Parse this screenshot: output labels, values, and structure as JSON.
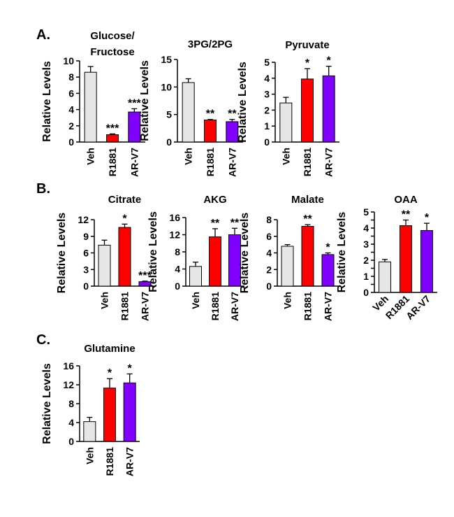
{
  "panels": [
    {
      "letter": "A.",
      "x": 0,
      "y": 0
    },
    {
      "letter": "B.",
      "x": 0,
      "y": 0
    },
    {
      "letter": "C.",
      "x": 0,
      "y": 0
    }
  ],
  "colors": {
    "Veh": "#e6e6e6",
    "R1881": "#ff0000",
    "AR-V7": "#7f00ff"
  },
  "chart_data": [
    {
      "panel": "A.",
      "type": "bar",
      "title": "Glucose/\nFructose",
      "ylabel": "Relative Levels",
      "categories": [
        "Veh",
        "R1881",
        "AR-V7"
      ],
      "values": [
        8.6,
        0.9,
        3.7
      ],
      "errors": [
        0.7,
        0.1,
        0.4
      ],
      "significance": [
        "",
        "***",
        "***"
      ],
      "ylim": [
        0,
        10
      ],
      "yticks": [
        0,
        2,
        4,
        6,
        8,
        10
      ]
    },
    {
      "panel": "A.",
      "type": "bar",
      "title": "3PG/2PG",
      "ylabel": "Relative Levels",
      "categories": [
        "Veh",
        "R1881",
        "AR-V7"
      ],
      "values": [
        10.8,
        4.0,
        3.7
      ],
      "errors": [
        0.7,
        0.1,
        0.4
      ],
      "significance": [
        "",
        "**",
        "**"
      ],
      "ylim": [
        0,
        15
      ],
      "yticks": [
        0,
        5,
        10,
        15
      ]
    },
    {
      "panel": "A.",
      "type": "bar",
      "title": "Pyruvate",
      "ylabel": "Relative Levels",
      "categories": [
        "Veh",
        "R1881",
        "AR-V7"
      ],
      "values": [
        2.45,
        3.95,
        4.15
      ],
      "errors": [
        0.35,
        0.65,
        0.6
      ],
      "significance": [
        "",
        "*",
        "*"
      ],
      "ylim": [
        0,
        5
      ],
      "yticks": [
        0,
        1,
        2,
        3,
        4,
        5
      ]
    },
    {
      "panel": "B.",
      "type": "bar",
      "title": "Citrate",
      "ylabel": "Relative Levels",
      "categories": [
        "Veh",
        "R1881",
        "AR-V7"
      ],
      "values": [
        7.4,
        10.6,
        0.8
      ],
      "errors": [
        0.9,
        0.6,
        0.1
      ],
      "significance": [
        "",
        "*",
        "***"
      ],
      "ylim": [
        0,
        12
      ],
      "yticks": [
        0,
        3,
        6,
        9,
        12
      ]
    },
    {
      "panel": "B.",
      "type": "bar",
      "title": "AKG",
      "ylabel": "Relative Levels",
      "categories": [
        "Veh",
        "R1881",
        "AR-V7"
      ],
      "values": [
        4.6,
        11.5,
        12.0
      ],
      "errors": [
        1.0,
        1.9,
        1.5
      ],
      "significance": [
        "",
        "**",
        "**"
      ],
      "ylim": [
        0,
        16
      ],
      "yticks": [
        0,
        4,
        8,
        12,
        16
      ]
    },
    {
      "panel": "B.",
      "type": "bar",
      "title": "Malate",
      "ylabel": "Relative Levels",
      "categories": [
        "Veh",
        "R1881",
        "AR-V7"
      ],
      "values": [
        4.8,
        7.2,
        3.8
      ],
      "errors": [
        0.2,
        0.2,
        0.2
      ],
      "significance": [
        "",
        "**",
        "*"
      ],
      "ylim": [
        0,
        8
      ],
      "yticks": [
        0,
        2,
        4,
        6,
        8
      ]
    },
    {
      "panel": "B.",
      "type": "bar",
      "title": "OAA",
      "ylabel": "Relative Levels",
      "categories": [
        "Veh",
        "R1881",
        "AR-V7"
      ],
      "values": [
        1.9,
        4.15,
        3.85
      ],
      "errors": [
        0.15,
        0.35,
        0.45
      ],
      "significance": [
        "",
        "**",
        "*"
      ],
      "ylim": [
        0,
        5
      ],
      "yticks": [
        0,
        0.5,
        1,
        1.5,
        2,
        2.5,
        3,
        3.5,
        4,
        4.5,
        5
      ],
      "ytick_labels": [
        "0",
        "",
        "1",
        "",
        "2",
        "",
        "3",
        "",
        "4",
        "",
        "5"
      ]
    },
    {
      "panel": "C.",
      "type": "bar",
      "title": "Glutamine",
      "ylabel": "Relative Levels",
      "categories": [
        "Veh",
        "R1881",
        "AR-V7"
      ],
      "values": [
        4.2,
        11.3,
        12.4
      ],
      "errors": [
        0.9,
        2.0,
        1.9
      ],
      "significance": [
        "",
        "*",
        "*"
      ],
      "ylim": [
        0,
        16
      ],
      "yticks": [
        0,
        4,
        8,
        12,
        16
      ]
    }
  ]
}
